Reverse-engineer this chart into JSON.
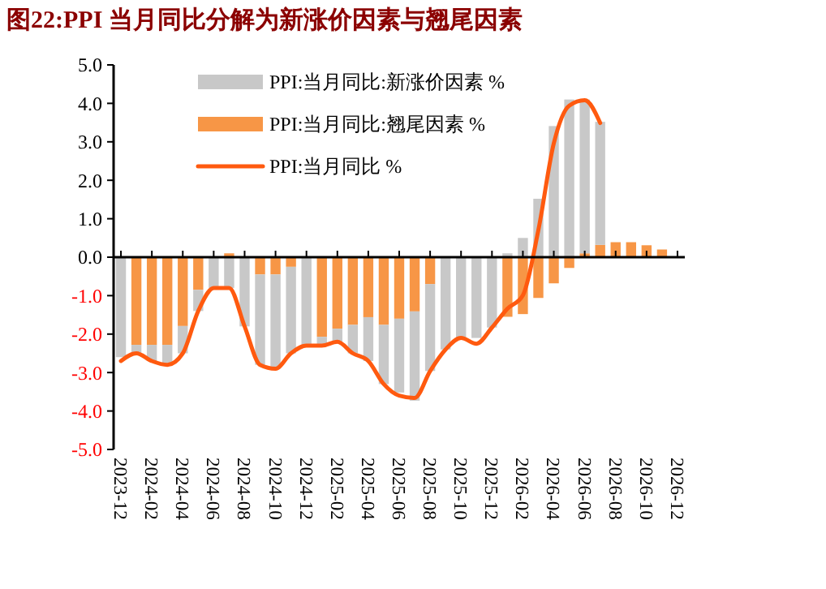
{
  "chart_data": {
    "type": "bar",
    "stacked": true,
    "title": "图22:PPI 当月同比分解为新涨价因素与翘尾因素",
    "categories": [
      "2023-12",
      null,
      "2024-02",
      null,
      "2024-04",
      null,
      "2024-06",
      null,
      "2024-08",
      null,
      "2024-10",
      null,
      "2024-12",
      null,
      "2025-02",
      null,
      "2025-04",
      null,
      "2025-06",
      null,
      "2025-08",
      null,
      "2025-10",
      null,
      "2025-12",
      null,
      "2026-02",
      null,
      "2026-04",
      null,
      "2026-06",
      null,
      "2026-08",
      null,
      "2026-10",
      null,
      "2026-12"
    ],
    "series": [
      {
        "name": "PPI:当月同比:翘尾因素 %",
        "color": "#f79646",
        "values": [
          0,
          -2.28,
          -2.28,
          -2.28,
          -1.79,
          -0.85,
          0,
          0.1,
          0,
          -0.45,
          -0.45,
          -0.25,
          0,
          -2.07,
          -1.86,
          -1.76,
          -1.56,
          -1.76,
          -1.6,
          -1.41,
          -0.7,
          0,
          0,
          0,
          0,
          -1.55,
          -1.48,
          -1.06,
          -0.68,
          -0.28,
          0.1,
          0.32,
          0.39,
          0.39,
          0.31,
          0.2,
          null
        ]
      },
      {
        "name": "PPI:当月同比:新涨价因素 %",
        "color": "#c8c8c8",
        "values": [
          -2.6,
          -0.22,
          -0.42,
          -0.52,
          -0.71,
          -0.55,
          -0.8,
          -0.8,
          -1.8,
          -2.35,
          -2.45,
          -2.25,
          -2.3,
          -0.23,
          -0.34,
          -0.74,
          -1.14,
          -1.54,
          -1.92,
          -2.32,
          -2.26,
          -2.4,
          -2.1,
          -2.1,
          -1.83,
          0.1,
          0.5,
          1.52,
          3.41,
          4.1,
          4.0,
          3.2,
          null,
          null,
          null,
          null,
          null
        ]
      },
      {
        "name": "PPI:当月同比 %",
        "type": "line",
        "color": "#ff5a0f",
        "values": [
          -2.7,
          -2.5,
          -2.7,
          -2.8,
          -2.5,
          -1.4,
          -0.8,
          -0.8,
          -1.8,
          -2.8,
          -2.9,
          -2.5,
          -2.3,
          -2.3,
          -2.2,
          -2.5,
          -2.7,
          -3.3,
          -3.6,
          -3.66,
          -2.96,
          -2.4,
          -2.1,
          -2.25,
          -1.83,
          -1.34,
          -0.99,
          0.7,
          2.96,
          3.94,
          4.08,
          3.49,
          null,
          null,
          null,
          null,
          null
        ]
      }
    ],
    "ylim": [
      -5,
      5
    ],
    "yticks": [
      {
        "value": -5,
        "label": "-5.0"
      },
      {
        "value": -4,
        "label": "-4.0"
      },
      {
        "value": -3,
        "label": "-3.0"
      },
      {
        "value": -2,
        "label": "-2.0"
      },
      {
        "value": -1,
        "label": "-1.0"
      },
      {
        "value": 0,
        "label": "0.0"
      },
      {
        "value": 1,
        "label": "1.0"
      },
      {
        "value": 2,
        "label": "2.0"
      },
      {
        "value": 3,
        "label": "3.0"
      },
      {
        "value": 4,
        "label": "4.0"
      },
      {
        "value": 5,
        "label": "5.0"
      }
    ],
    "legend": "top left",
    "marker": "none",
    "line_style": "solid"
  }
}
